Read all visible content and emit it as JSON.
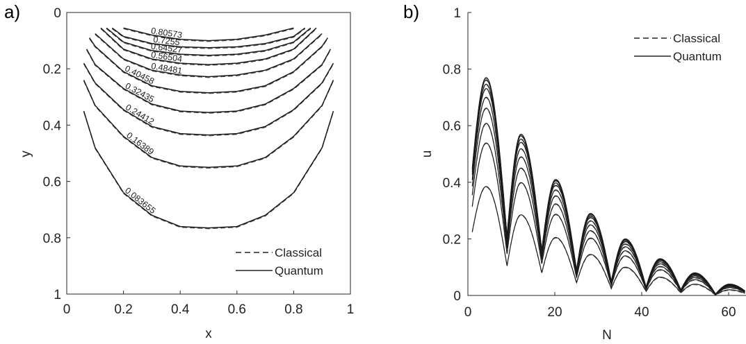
{
  "chart_data": [
    {
      "panel": "a)",
      "type": "line",
      "subtype": "contour",
      "xlabel": "x",
      "ylabel": "y",
      "xlim": [
        0,
        1
      ],
      "ylim": [
        0,
        1
      ],
      "y_reversed": true,
      "xticks": [
        "0",
        "0.2",
        "0.4",
        "0.6",
        "0.8",
        "1"
      ],
      "yticks": [
        "0",
        "0.2",
        "0.4",
        "0.6",
        "0.8",
        "1"
      ],
      "legend": {
        "position": "bottom-right",
        "entries": [
          {
            "name": "Classical",
            "style": "dashed"
          },
          {
            "name": "Quantum",
            "style": "solid"
          }
        ]
      },
      "contour_levels": [
        "0.80573",
        "0.7255",
        "0.64527",
        "0.56504",
        "0.48481",
        "0.40458",
        "0.32435",
        "0.24412",
        "0.16389",
        "0.083655"
      ],
      "series": [
        {
          "level": "0.80573",
          "x": [
            0.2,
            0.3,
            0.4,
            0.5,
            0.6,
            0.7,
            0.8
          ],
          "y": [
            0.055,
            0.08,
            0.095,
            0.1,
            0.095,
            0.08,
            0.055
          ]
        },
        {
          "level": "0.7255",
          "x": [
            0.16,
            0.2,
            0.3,
            0.4,
            0.5,
            0.6,
            0.7,
            0.8,
            0.84
          ],
          "y": [
            0.055,
            0.085,
            0.11,
            0.122,
            0.125,
            0.122,
            0.11,
            0.085,
            0.055
          ]
        },
        {
          "level": "0.64527",
          "x": [
            0.14,
            0.2,
            0.3,
            0.4,
            0.5,
            0.6,
            0.7,
            0.8,
            0.86
          ],
          "y": [
            0.055,
            0.105,
            0.135,
            0.148,
            0.152,
            0.148,
            0.135,
            0.105,
            0.055
          ]
        },
        {
          "level": "0.56504",
          "x": [
            0.12,
            0.2,
            0.3,
            0.4,
            0.5,
            0.6,
            0.7,
            0.8,
            0.88
          ],
          "y": [
            0.055,
            0.13,
            0.165,
            0.18,
            0.185,
            0.18,
            0.165,
            0.13,
            0.055
          ]
        },
        {
          "level": "0.48481",
          "x": [
            0.1,
            0.2,
            0.3,
            0.4,
            0.5,
            0.6,
            0.7,
            0.8,
            0.9
          ],
          "y": [
            0.075,
            0.165,
            0.205,
            0.222,
            0.228,
            0.222,
            0.205,
            0.165,
            0.075
          ]
        },
        {
          "level": "0.40458",
          "x": [
            0.08,
            0.1,
            0.2,
            0.3,
            0.4,
            0.5,
            0.6,
            0.7,
            0.8,
            0.9,
            0.92
          ],
          "y": [
            0.09,
            0.12,
            0.21,
            0.26,
            0.28,
            0.285,
            0.28,
            0.26,
            0.21,
            0.12,
            0.09
          ]
        },
        {
          "level": "0.32435",
          "x": [
            0.07,
            0.1,
            0.2,
            0.3,
            0.4,
            0.5,
            0.6,
            0.7,
            0.8,
            0.9,
            0.93
          ],
          "y": [
            0.13,
            0.185,
            0.27,
            0.325,
            0.35,
            0.355,
            0.35,
            0.325,
            0.27,
            0.185,
            0.13
          ]
        },
        {
          "level": "0.24412",
          "x": [
            0.06,
            0.1,
            0.2,
            0.3,
            0.4,
            0.5,
            0.6,
            0.7,
            0.8,
            0.9,
            0.94
          ],
          "y": [
            0.18,
            0.25,
            0.345,
            0.405,
            0.43,
            0.435,
            0.43,
            0.405,
            0.345,
            0.25,
            0.18
          ]
        },
        {
          "level": "0.16389",
          "x": [
            0.06,
            0.1,
            0.2,
            0.3,
            0.4,
            0.5,
            0.6,
            0.7,
            0.8,
            0.9,
            0.94
          ],
          "y": [
            0.24,
            0.33,
            0.44,
            0.515,
            0.545,
            0.55,
            0.545,
            0.515,
            0.44,
            0.33,
            0.24
          ]
        },
        {
          "level": "0.083655",
          "x": [
            0.06,
            0.1,
            0.2,
            0.3,
            0.4,
            0.5,
            0.6,
            0.7,
            0.8,
            0.9,
            0.94
          ],
          "y": [
            0.35,
            0.48,
            0.64,
            0.72,
            0.76,
            0.765,
            0.76,
            0.72,
            0.64,
            0.48,
            0.35
          ]
        }
      ]
    },
    {
      "panel": "b)",
      "type": "line",
      "xlabel": "N",
      "ylabel": "u",
      "xlim": [
        0,
        64
      ],
      "ylim": [
        0,
        1
      ],
      "xticks": [
        "0",
        "20",
        "40",
        "60"
      ],
      "yticks": [
        "0",
        "0.2",
        "0.4",
        "0.6",
        "0.8",
        "1"
      ],
      "legend": {
        "position": "top-right",
        "entries": [
          {
            "name": "Classical",
            "style": "dashed"
          },
          {
            "name": "Quantum",
            "style": "solid"
          }
        ]
      },
      "period": 8,
      "x_start": 1,
      "lobe_peaks": [
        0.77,
        0.57,
        0.41,
        0.29,
        0.2,
        0.13,
        0.08,
        0.04
      ],
      "lobe_minima": [
        0.21,
        0.16,
        0.09,
        0.05,
        0.03,
        0.02,
        0.005,
        0.0
      ],
      "series_scale_factors": [
        1.0,
        0.99,
        0.97,
        0.95,
        0.91,
        0.86,
        0.79,
        0.7,
        0.5
      ]
    }
  ]
}
